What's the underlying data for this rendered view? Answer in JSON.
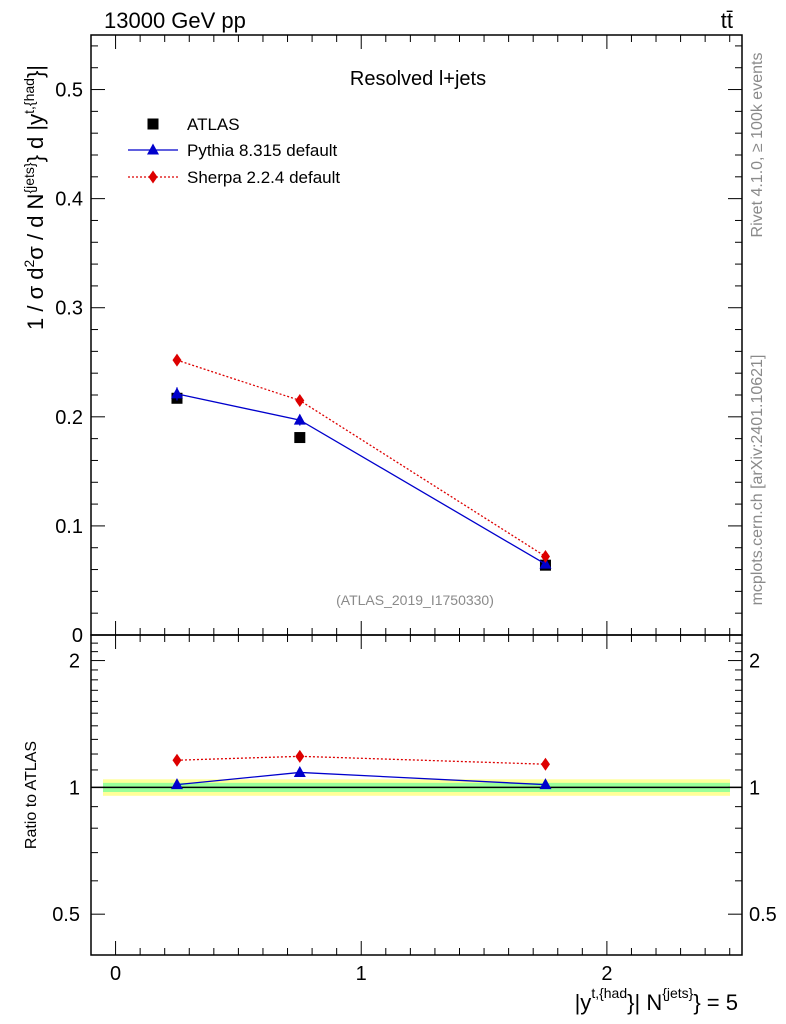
{
  "header": {
    "energy_label": "13000 GeV pp",
    "process_label": "tt̄"
  },
  "side": {
    "rivet_label": "Rivet 4.1.0, ≥ 100k events",
    "source_label": "mcplots.cern.ch [arXiv:2401.10621]"
  },
  "chart_data": {
    "type": "line",
    "title": "Resolved l+jets",
    "analysis_id": "(ATLAS_2019_I1750330)",
    "ylabel_main_parts": [
      "1 / σ d",
      "2",
      "σ / d N",
      "{jets}",
      "} d |y",
      "t,{had",
      "}|"
    ],
    "ylabel_ratio": "Ratio to ATLAS",
    "xlabel_parts": [
      "|y",
      "t,{had",
      "}| N",
      "{jets}",
      "} = 5"
    ],
    "xlim": [
      -0.1,
      2.55
    ],
    "ylim_main": [
      0,
      0.55
    ],
    "ylim_ratio": [
      0.4,
      2.3
    ],
    "x_ticks": [
      {
        "v": 0,
        "label": "0"
      },
      {
        "v": 1,
        "label": "1"
      },
      {
        "v": 2,
        "label": "2"
      }
    ],
    "y_ticks_main": [
      {
        "v": 0,
        "label": "0"
      },
      {
        "v": 0.1,
        "label": "0.1"
      },
      {
        "v": 0.2,
        "label": "0.2"
      },
      {
        "v": 0.3,
        "label": "0.3"
      },
      {
        "v": 0.4,
        "label": "0.4"
      },
      {
        "v": 0.5,
        "label": "0.5"
      }
    ],
    "y_ticks_ratio": [
      {
        "v": 0.5,
        "label": "0.5"
      },
      {
        "v": 1,
        "label": "1"
      },
      {
        "v": 2,
        "label": "2"
      }
    ],
    "band": {
      "yellow": [
        0.955,
        1.045
      ],
      "green": [
        0.975,
        1.025
      ]
    },
    "series": [
      {
        "name": "ATLAS",
        "color": "#000000",
        "marker": "square",
        "line": "none",
        "x": [
          0.25,
          0.75,
          1.75
        ],
        "y": [
          0.217,
          0.181,
          0.064
        ],
        "err": [
          0.004,
          0.004,
          0.002
        ]
      },
      {
        "name": "Pythia 8.315 default",
        "color": "#0000cc",
        "marker": "triangle",
        "line": "solid",
        "x": [
          0.25,
          0.75,
          1.75
        ],
        "y": [
          0.221,
          0.197,
          0.065
        ],
        "err": [
          0.006,
          0.005,
          0.002
        ],
        "ratio": [
          1.015,
          1.085,
          1.015
        ],
        "ratio_err": [
          0.02,
          0.02,
          0.02
        ]
      },
      {
        "name": "Sherpa 2.2.4 default",
        "color": "#dd0000",
        "marker": "diamond",
        "line": "dotted",
        "x": [
          0.25,
          0.75,
          1.75
        ],
        "y": [
          0.252,
          0.215,
          0.072
        ],
        "err": [
          0.002,
          0.002,
          0.001
        ],
        "ratio": [
          1.16,
          1.185,
          1.135
        ],
        "ratio_err": [
          0.005,
          0.005,
          0.005
        ]
      }
    ]
  }
}
